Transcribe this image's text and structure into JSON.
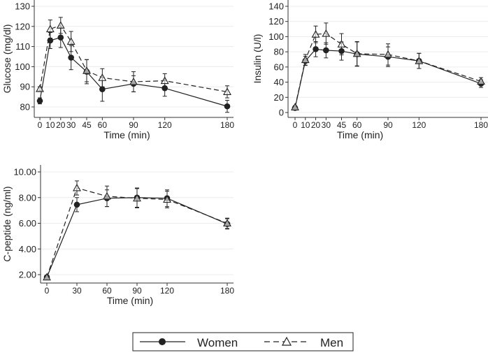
{
  "chart_data": [
    {
      "type": "line",
      "title": "",
      "xlabel": "Time (min)",
      "ylabel": "Glucose (mg/dl)",
      "x": [
        0,
        10,
        20,
        30,
        45,
        60,
        90,
        120,
        180
      ],
      "xticks": [
        0,
        10,
        20,
        30,
        45,
        60,
        90,
        120,
        180
      ],
      "yticks": [
        80,
        90,
        100,
        110,
        120,
        130
      ],
      "ylim": [
        76,
        131
      ],
      "ytick_labels": [
        "80",
        "90",
        "100",
        "110",
        "120",
        "130"
      ],
      "grid": true,
      "series": [
        {
          "name": "Women",
          "values": [
            83,
            113,
            114.5,
            104.5,
            97.5,
            88.8,
            91.5,
            89.3,
            80.3
          ],
          "errors": [
            1.5,
            4,
            5,
            6,
            6,
            6,
            4,
            4,
            3
          ]
        },
        {
          "name": "Men",
          "values": [
            89,
            118.7,
            120.5,
            112.5,
            98,
            94.5,
            92.5,
            93,
            87.5
          ],
          "errors": [
            1,
            4.5,
            4,
            5,
            5.5,
            4.5,
            5,
            3.5,
            3
          ]
        }
      ]
    },
    {
      "type": "line",
      "title": "",
      "xlabel": "Time (min)",
      "ylabel": "Insulin (U/l)",
      "x": [
        0,
        10,
        20,
        30,
        45,
        60,
        90,
        120,
        180
      ],
      "xticks": [
        0,
        10,
        20,
        30,
        45,
        60,
        90,
        120,
        180
      ],
      "yticks": [
        0,
        20,
        40,
        60,
        80,
        100,
        120,
        140
      ],
      "ylim": [
        -9,
        145
      ],
      "ytick_labels": [
        "0",
        "20",
        "40",
        "60",
        "80",
        "100",
        "120",
        "140"
      ],
      "grid": true,
      "series": [
        {
          "name": "Women",
          "values": [
            6,
            68,
            83.5,
            82,
            81,
            77,
            73.5,
            68,
            38
          ],
          "errors": [
            2,
            6,
            10,
            10,
            12,
            16,
            13,
            10,
            5
          ]
        },
        {
          "name": "Men",
          "values": [
            7,
            69.5,
            103,
            104,
            90,
            77.5,
            76.5,
            68,
            41
          ],
          "errors": [
            2,
            7,
            11,
            14,
            14,
            16,
            14,
            10,
            5
          ]
        }
      ]
    },
    {
      "type": "line",
      "title": "",
      "xlabel": "Time (min)",
      "ylabel": "C-peptide (ng/ml)",
      "x": [
        0,
        30,
        60,
        90,
        120,
        180
      ],
      "xticks": [
        0,
        30,
        60,
        90,
        120,
        180
      ],
      "yticks": [
        2,
        4,
        6,
        8,
        10
      ],
      "ylim": [
        1.2,
        10.4
      ],
      "ytick_labels": [
        "2.00",
        "4.00",
        "6.00",
        "8.00",
        "10.00"
      ],
      "grid": true,
      "series": [
        {
          "name": "Women",
          "values": [
            1.8,
            7.45,
            7.95,
            8.0,
            7.95,
            5.95
          ],
          "errors": [
            0.1,
            0.55,
            0.65,
            0.75,
            0.65,
            0.4
          ]
        },
        {
          "name": "Men",
          "values": [
            1.8,
            8.75,
            8.1,
            7.95,
            7.85,
            6.0
          ],
          "errors": [
            0.1,
            0.55,
            0.8,
            0.75,
            0.65,
            0.4
          ]
        }
      ]
    }
  ],
  "legend": {
    "placement": "bottom-center",
    "items": [
      {
        "label": "Women",
        "marker": "filled-circle",
        "line": "solid"
      },
      {
        "label": "Men",
        "marker": "hollow-triangle",
        "line": "dashed"
      }
    ]
  }
}
